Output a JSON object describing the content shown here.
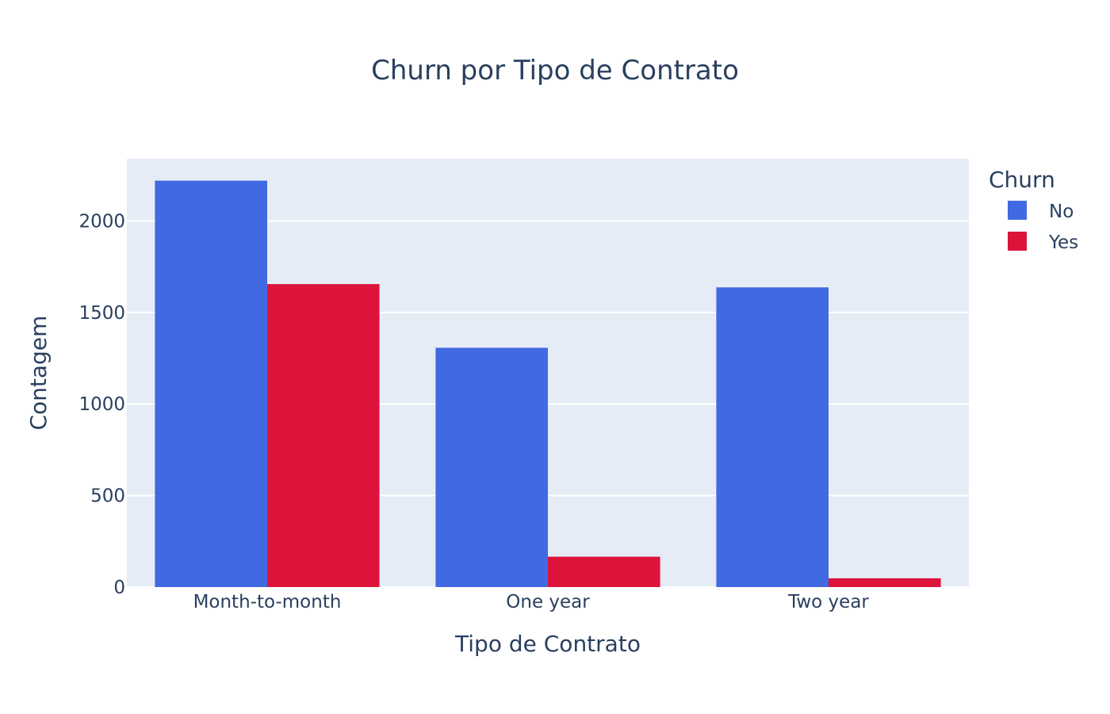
{
  "chart_data": {
    "type": "bar",
    "title": "Churn por Tipo de Contrato",
    "xlabel": "Tipo de Contrato",
    "ylabel": "Contagem",
    "categories": [
      "Month-to-month",
      "One year",
      "Two year"
    ],
    "series": [
      {
        "name": "No",
        "color": "#4169E1",
        "values": [
          2220,
          1307,
          1637
        ]
      },
      {
        "name": "Yes",
        "color": "#DC143C",
        "values": [
          1655,
          166,
          48
        ]
      }
    ],
    "ylim": [
      0,
      2340
    ],
    "yticks": [
      0,
      500,
      1000,
      1500,
      2000
    ],
    "ytick_labels": [
      "0",
      "500",
      "1000",
      "1500",
      "2000"
    ],
    "legend": {
      "title": "Churn",
      "position": "top-right"
    },
    "grid": true,
    "barmode": "group",
    "colors": {
      "plot_background": "#E5ECF6",
      "grid": "#FFFFFF",
      "text": "#2A3F5F"
    }
  }
}
